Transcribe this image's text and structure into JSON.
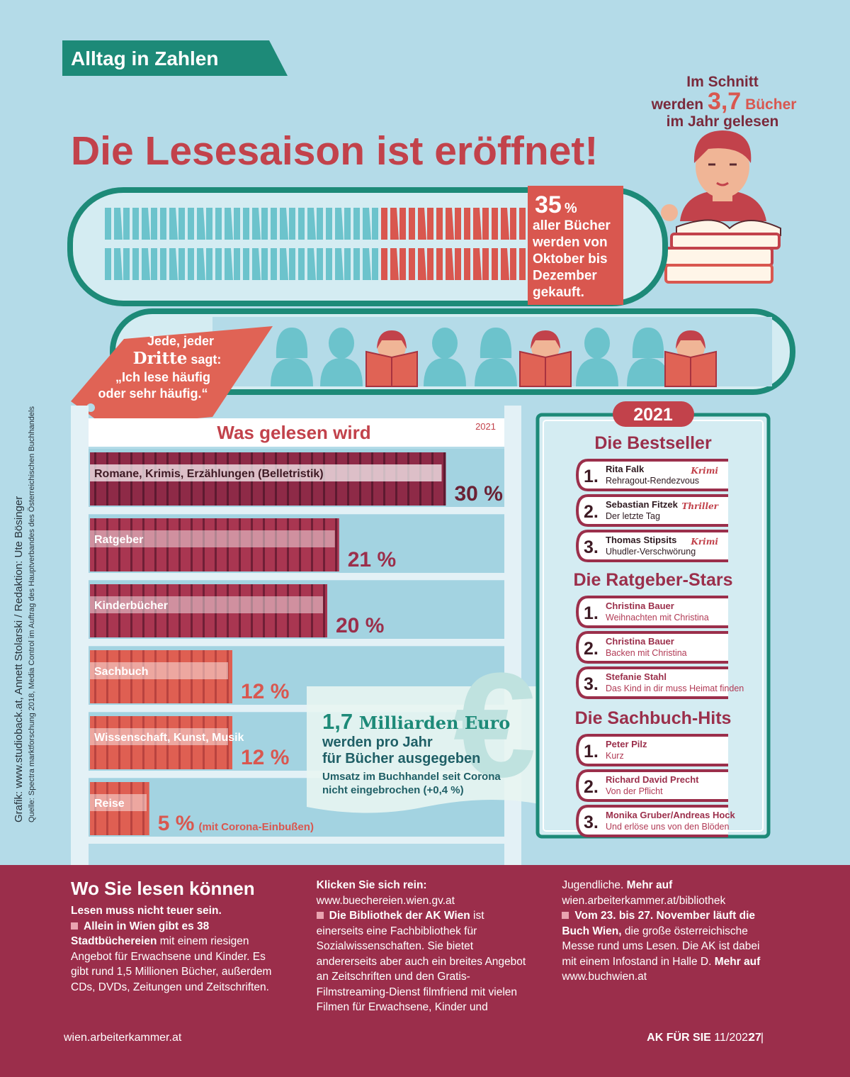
{
  "header": {
    "section": "Alltag in Zahlen",
    "title": "Die Lesesaison ist eröffnet!"
  },
  "average_books": {
    "line1": "Im Schnitt",
    "pre": "werden",
    "value": "3,7",
    "post": "Bücher",
    "line3": "im Jahr gelesen"
  },
  "purchase": {
    "value": 35,
    "unit": "%",
    "lines": [
      "aller Bücher",
      "werden von",
      "Oktober bis",
      "Dezember",
      "gekauft."
    ]
  },
  "frequent_readers": {
    "line1": "Jede, jeder",
    "share": "Dritte",
    "verb": "sagt:",
    "quote": [
      "„Ich lese häufig",
      "oder sehr häufig.“"
    ]
  },
  "reading_chart": {
    "title": "Was gelesen wird",
    "year": "2021",
    "categories": [
      "Romane, Krimis, Erzählungen (Belletristik)",
      "Ratgeber",
      "Kinderbücher",
      "Sachbuch",
      "Wissenschaft, Kunst, Musik",
      "Reise"
    ],
    "values": [
      30,
      21,
      20,
      12,
      12,
      5
    ],
    "value_labels": [
      "30 %",
      "21 %",
      "20 %",
      "12 %",
      "12 %",
      "5 %"
    ],
    "note": "(mit Corona-Einbußen)"
  },
  "revenue": {
    "amount": "1,7",
    "unit": "Milliarden Euro",
    "lines": [
      "werden pro Jahr",
      "für Bücher ausgegeben"
    ],
    "note": [
      "Umsatz im Buchhandel seit Corona",
      "nicht eingebrochen (+0,4 %)"
    ]
  },
  "bestsellers": {
    "year": "2021",
    "lists": [
      {
        "title": "Die Bestseller",
        "items": [
          {
            "rank": "1.",
            "author": "Rita Falk",
            "work": "Rehragout-Rendezvous",
            "genre": "Krimi"
          },
          {
            "rank": "2.",
            "author": "Sebastian Fitzek",
            "work": "Der letzte Tag",
            "genre": "Thriller"
          },
          {
            "rank": "3.",
            "author": "Thomas Stipsits",
            "work": "Uhudler-Verschwörung",
            "genre": "Krimi"
          }
        ]
      },
      {
        "title": "Die Ratgeber-Stars",
        "items": [
          {
            "rank": "1.",
            "author": "Christina Bauer",
            "work": "Weihnachten mit Christina"
          },
          {
            "rank": "2.",
            "author": "Christina Bauer",
            "work": "Backen mit Christina"
          },
          {
            "rank": "3.",
            "author": "Stefanie Stahl",
            "work": "Das Kind in dir muss Heimat finden"
          }
        ]
      },
      {
        "title": "Die Sachbuch-Hits",
        "items": [
          {
            "rank": "1.",
            "author": "Peter Pilz",
            "work": "Kurz"
          },
          {
            "rank": "2.",
            "author": "Richard David Precht",
            "work": "Von der Pflicht"
          },
          {
            "rank": "3.",
            "author": "Monika Gruber/Andreas Hock",
            "work": "Und erlöse uns von den Blöden"
          }
        ]
      }
    ]
  },
  "credits": {
    "graphic": "Grafik: www.studioback.at, Annett Stolarski / Redaktion: Ute Bösinger",
    "source": "Quelle: Spectra marktforschung 2018, Media Control im Auftrag des Hauptverbandes des Österreichischen Buchhandels"
  },
  "article": {
    "title": "Wo Sie lesen können",
    "paragraphs": [
      {
        "runs": [
          {
            "text": "Lesen muss nicht teuer sein.",
            "bold": true
          }
        ]
      },
      {
        "runs": [
          {
            "text": "Allein in Wien gibt es 38 Stadtbüchereien",
            "bold": true
          },
          {
            "text": " mit einem riesigen Angebot für Erwachsene und Kinder. Es gibt rund 1,5 Millionen Bücher, außerdem CDs, DVDs, Zeitungen und Zeitschriften. ",
            "bold": false
          },
          {
            "text": "Klicken Sie sich rein:",
            "bold": true
          },
          {
            "text": " www.buechereien.wien.gv.at",
            "bold": false
          }
        ]
      },
      {
        "runs": [
          {
            "text": "Die Bibliothek der AK Wien",
            "bold": true
          },
          {
            "text": " ist einerseits eine Fachbibliothek für Sozialwissenschaften. Sie bietet andererseits aber auch ein breites Angebot an Zeitschriften und den Gratis-Filmstreaming-Dienst filmfriend mit vielen Filmen für Erwachsene, Kinder und Jugendliche. ",
            "bold": false
          },
          {
            "text": "Mehr auf",
            "bold": true
          },
          {
            "text": " wien.arbeiterkammer.at/bibliothek",
            "bold": false
          }
        ]
      },
      {
        "runs": [
          {
            "text": "Vom 23. bis 27. November läuft die Buch Wien,",
            "bold": true
          },
          {
            "text": " die große österreichische Messe rund ums Lesen. Die AK ist dabei mit einem Infostand in Halle D. ",
            "bold": false
          },
          {
            "text": "Mehr auf",
            "bold": true
          },
          {
            "text": " www.buchwien.at",
            "bold": false
          }
        ]
      }
    ]
  },
  "footer": {
    "site": "wien.arbeiterkammer.at",
    "magazine": "AK FÜR SIE",
    "issue": "11/2022",
    "page": "27"
  }
}
